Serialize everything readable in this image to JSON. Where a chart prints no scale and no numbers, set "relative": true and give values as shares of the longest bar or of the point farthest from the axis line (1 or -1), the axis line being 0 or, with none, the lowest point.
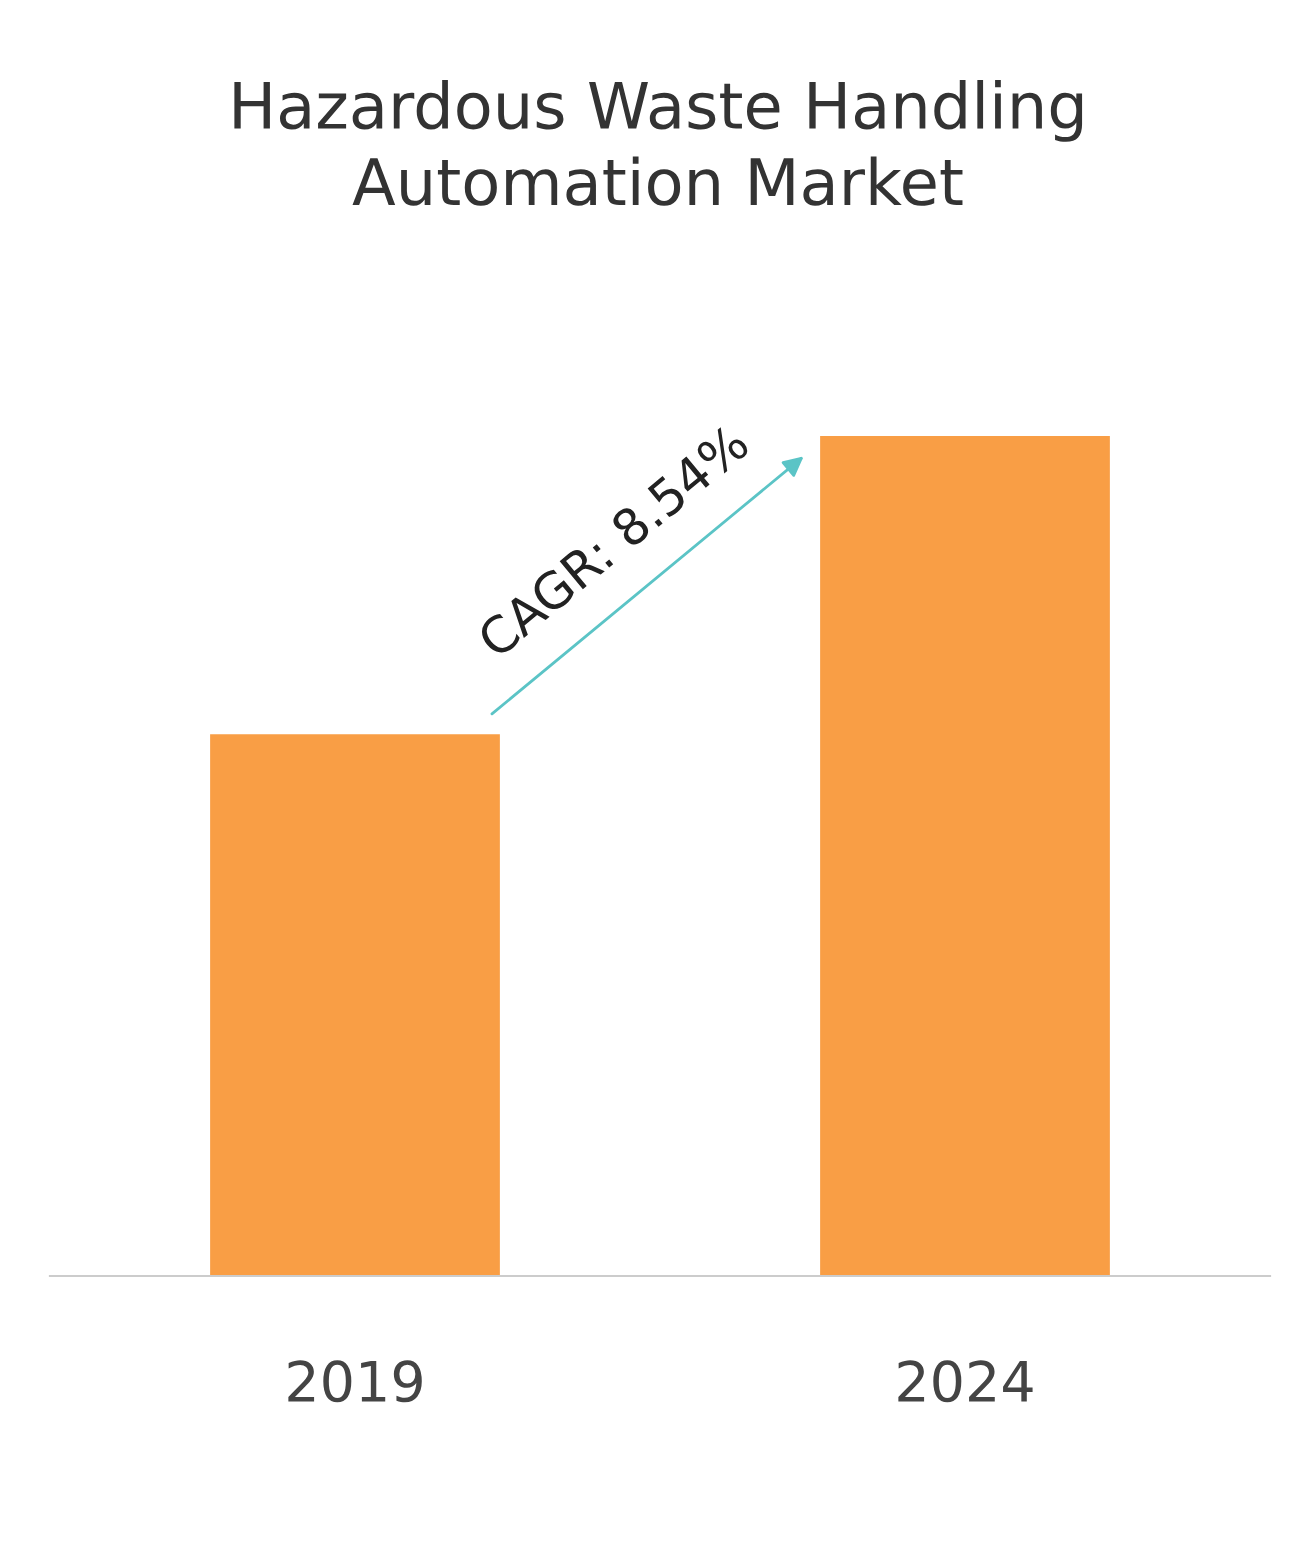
{
  "chart_data": {
    "type": "bar",
    "title": "Hazardous Waste Handling\nAutomation Market",
    "categories": [
      "2019",
      "2024"
    ],
    "values": [
      0.645,
      1
    ],
    "color": "#f99e45",
    "relative": true,
    "annotations": [
      "CAGR: 8.54%"
    ],
    "grid": false,
    "legend": false
  }
}
